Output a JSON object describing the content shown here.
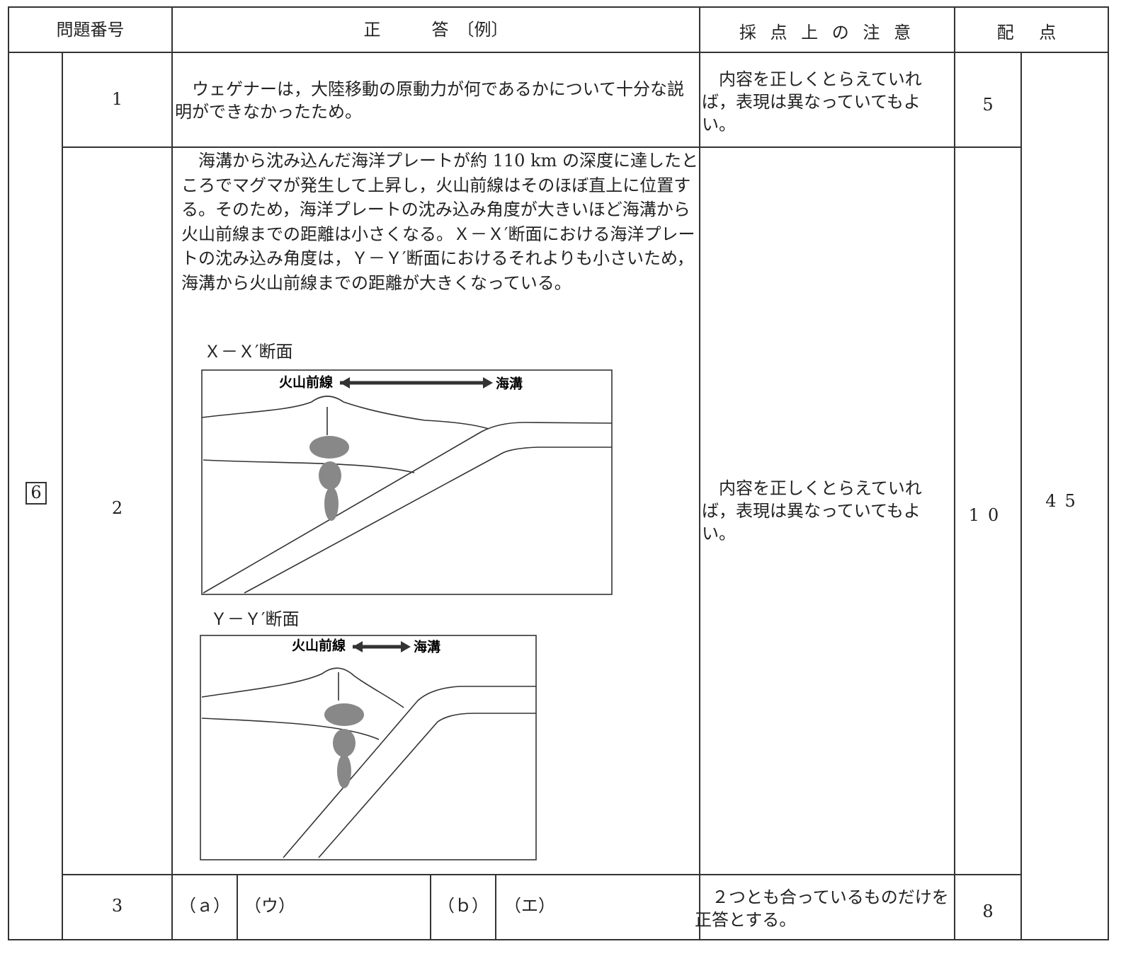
{
  "header": {
    "question_number": "問題番号",
    "answer": "正　　　答　〔例〕",
    "notes": "採 点 上 の 注 意",
    "points": "配 点"
  },
  "section": {
    "number": "6",
    "total": "45"
  },
  "rows": [
    {
      "number": "1",
      "answer": "ウェゲナーは，大陸移動の原動力が何であるかについて十分な説明ができなかったため。",
      "note": "内容を正しくとらえていれば，表現は異なっていてもよい。",
      "points": "5"
    },
    {
      "number": "2",
      "answer": "海溝から沈み込んだ海洋プレートが約 110 km の深度に達したところでマグマが発生して上昇し，火山前線はそのほぼ直上に位置する。そのため，海洋プレートの沈み込み角度が大きいほど海溝から火山前線までの距離は小さくなる。Ｘ－Ｘ′断面における海洋プレートの沈み込み角度は，Ｙ－Ｙ′断面におけるそれよりも小さいため，海溝から火山前線までの距離が大きくなっている。",
      "figures": [
        {
          "title": "Ｘ－Ｘ′断面",
          "volcanic_front": "火山前線",
          "trench": "海溝"
        },
        {
          "title": "Ｙ－Ｙ′断面",
          "volcanic_front": "火山前線",
          "trench": "海溝"
        }
      ],
      "note": "内容を正しくとらえていれば，表現は異なっていてもよい。",
      "points": "10"
    },
    {
      "number": "3",
      "a_label": "（ａ）",
      "a_answer": "（ウ）",
      "b_label": "（ｂ）",
      "b_answer": "（エ）",
      "note": "２つとも合っているものだけを正答とする。",
      "points": "8"
    }
  ]
}
